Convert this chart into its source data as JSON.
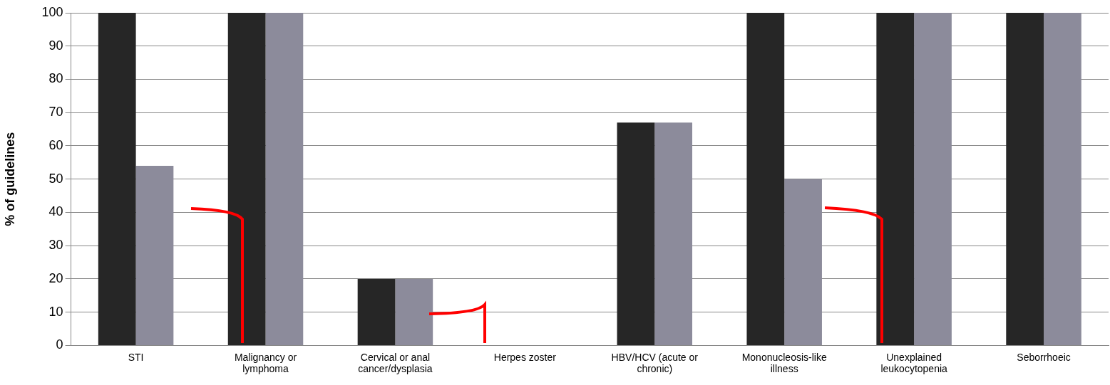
{
  "chart_data": {
    "type": "bar",
    "ylabel": "% of guidelines",
    "categories": [
      "STI",
      "Malignancy or lymphoma",
      "Cervical or anal cancer/dysplasia",
      "Herpes zoster",
      "HBV/HCV (acute or chronic)",
      "Mononucleosis-like illness",
      "Unexplained leukocytopenia",
      "Seborrhoeic"
    ],
    "series": [
      {
        "color": "#262626",
        "values": [
          100,
          100,
          20,
          0,
          67,
          100,
          100,
          100
        ]
      },
      {
        "color": "#8c8b9b",
        "values": [
          54,
          100,
          20,
          0,
          67,
          50,
          100,
          100
        ]
      }
    ],
    "ylim": [
      0,
      100
    ],
    "yticks": [
      0,
      10,
      20,
      30,
      40,
      50,
      60,
      70,
      80,
      90,
      100
    ],
    "grid": "y",
    "legend": false
  }
}
